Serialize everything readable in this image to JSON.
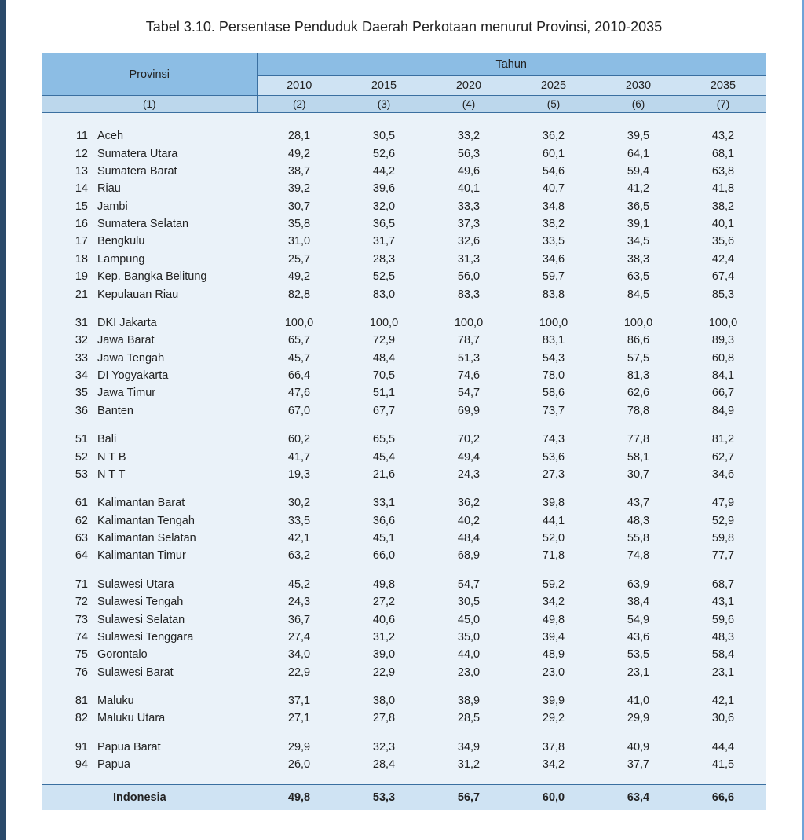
{
  "title": "Tabel 3.10. Persentase Penduduk Daerah Perkotaan menurut Provinsi, 2010-2035",
  "header": {
    "provinsi": "Provinsi",
    "tahun": "Tahun",
    "years": [
      "2010",
      "2015",
      "2020",
      "2025",
      "2030",
      "2035"
    ],
    "col_idx": [
      "(1)",
      "(2)",
      "(3)",
      "(4)",
      "(5)",
      "(6)",
      "(7)"
    ]
  },
  "colors": {
    "header_main": "#8cbde4",
    "header_years": "#cfe3f3",
    "header_idx": "#bcd7ec",
    "body_bg": "#eaf2f9",
    "total_bg": "#cfe3f3",
    "border": "#3a6fa0",
    "page_left_border": "#2a4a6a",
    "page_right_border": "#6fa3d7"
  },
  "groups": [
    {
      "rows": [
        {
          "code": "11",
          "name": "Aceh",
          "v": [
            "28,1",
            "30,5",
            "33,2",
            "36,2",
            "39,5",
            "43,2"
          ]
        },
        {
          "code": "12",
          "name": "Sumatera Utara",
          "v": [
            "49,2",
            "52,6",
            "56,3",
            "60,1",
            "64,1",
            "68,1"
          ]
        },
        {
          "code": "13",
          "name": "Sumatera Barat",
          "v": [
            "38,7",
            "44,2",
            "49,6",
            "54,6",
            "59,4",
            "63,8"
          ]
        },
        {
          "code": "14",
          "name": "Riau",
          "v": [
            "39,2",
            "39,6",
            "40,1",
            "40,7",
            "41,2",
            "41,8"
          ]
        },
        {
          "code": "15",
          "name": "Jambi",
          "v": [
            "30,7",
            "32,0",
            "33,3",
            "34,8",
            "36,5",
            "38,2"
          ]
        },
        {
          "code": "16",
          "name": "Sumatera Selatan",
          "v": [
            "35,8",
            "36,5",
            "37,3",
            "38,2",
            "39,1",
            "40,1"
          ]
        },
        {
          "code": "17",
          "name": "Bengkulu",
          "v": [
            "31,0",
            "31,7",
            "32,6",
            "33,5",
            "34,5",
            "35,6"
          ]
        },
        {
          "code": "18",
          "name": "Lampung",
          "v": [
            "25,7",
            "28,3",
            "31,3",
            "34,6",
            "38,3",
            "42,4"
          ]
        },
        {
          "code": "19",
          "name": "Kep. Bangka Belitung",
          "v": [
            "49,2",
            "52,5",
            "56,0",
            "59,7",
            "63,5",
            "67,4"
          ]
        },
        {
          "code": "21",
          "name": "Kepulauan Riau",
          "v": [
            "82,8",
            "83,0",
            "83,3",
            "83,8",
            "84,5",
            "85,3"
          ]
        }
      ]
    },
    {
      "rows": [
        {
          "code": "31",
          "name": "DKI Jakarta",
          "v": [
            "100,0",
            "100,0",
            "100,0",
            "100,0",
            "100,0",
            "100,0"
          ]
        },
        {
          "code": "32",
          "name": "Jawa Barat",
          "v": [
            "65,7",
            "72,9",
            "78,7",
            "83,1",
            "86,6",
            "89,3"
          ]
        },
        {
          "code": "33",
          "name": "Jawa Tengah",
          "v": [
            "45,7",
            "48,4",
            "51,3",
            "54,3",
            "57,5",
            "60,8"
          ]
        },
        {
          "code": "34",
          "name": "DI Yogyakarta",
          "v": [
            "66,4",
            "70,5",
            "74,6",
            "78,0",
            "81,3",
            "84,1"
          ]
        },
        {
          "code": "35",
          "name": "Jawa Timur",
          "v": [
            "47,6",
            "51,1",
            "54,7",
            "58,6",
            "62,6",
            "66,7"
          ]
        },
        {
          "code": "36",
          "name": "Banten",
          "v": [
            "67,0",
            "67,7",
            "69,9",
            "73,7",
            "78,8",
            "84,9"
          ]
        }
      ]
    },
    {
      "rows": [
        {
          "code": "51",
          "name": "Bali",
          "v": [
            "60,2",
            "65,5",
            "70,2",
            "74,3",
            "77,8",
            "81,2"
          ]
        },
        {
          "code": "52",
          "name": "N T B",
          "v": [
            "41,7",
            "45,4",
            "49,4",
            "53,6",
            "58,1",
            "62,7"
          ]
        },
        {
          "code": "53",
          "name": "N T T",
          "v": [
            "19,3",
            "21,6",
            "24,3",
            "27,3",
            "30,7",
            "34,6"
          ]
        }
      ]
    },
    {
      "rows": [
        {
          "code": "61",
          "name": "Kalimantan Barat",
          "v": [
            "30,2",
            "33,1",
            "36,2",
            "39,8",
            "43,7",
            "47,9"
          ]
        },
        {
          "code": "62",
          "name": "Kalimantan Tengah",
          "v": [
            "33,5",
            "36,6",
            "40,2",
            "44,1",
            "48,3",
            "52,9"
          ]
        },
        {
          "code": "63",
          "name": "Kalimantan Selatan",
          "v": [
            "42,1",
            "45,1",
            "48,4",
            "52,0",
            "55,8",
            "59,8"
          ]
        },
        {
          "code": "64",
          "name": "Kalimantan Timur",
          "v": [
            "63,2",
            "66,0",
            "68,9",
            "71,8",
            "74,8",
            "77,7"
          ]
        }
      ]
    },
    {
      "rows": [
        {
          "code": "71",
          "name": "Sulawesi Utara",
          "v": [
            "45,2",
            "49,8",
            "54,7",
            "59,2",
            "63,9",
            "68,7"
          ]
        },
        {
          "code": "72",
          "name": "Sulawesi Tengah",
          "v": [
            "24,3",
            "27,2",
            "30,5",
            "34,2",
            "38,4",
            "43,1"
          ]
        },
        {
          "code": "73",
          "name": "Sulawesi Selatan",
          "v": [
            "36,7",
            "40,6",
            "45,0",
            "49,8",
            "54,9",
            "59,6"
          ]
        },
        {
          "code": "74",
          "name": "Sulawesi Tenggara",
          "v": [
            "27,4",
            "31,2",
            "35,0",
            "39,4",
            "43,6",
            "48,3"
          ]
        },
        {
          "code": "75",
          "name": "Gorontalo",
          "v": [
            "34,0",
            "39,0",
            "44,0",
            "48,9",
            "53,5",
            "58,4"
          ]
        },
        {
          "code": "76",
          "name": "Sulawesi Barat",
          "v": [
            "22,9",
            "22,9",
            "23,0",
            "23,0",
            "23,1",
            "23,1"
          ]
        }
      ]
    },
    {
      "rows": [
        {
          "code": "81",
          "name": "Maluku",
          "v": [
            "37,1",
            "38,0",
            "38,9",
            "39,9",
            "41,0",
            "42,1"
          ]
        },
        {
          "code": "82",
          "name": "Maluku Utara",
          "v": [
            "27,1",
            "27,8",
            "28,5",
            "29,2",
            "29,9",
            "30,6"
          ]
        }
      ]
    },
    {
      "rows": [
        {
          "code": "91",
          "name": "Papua Barat",
          "v": [
            "29,9",
            "32,3",
            "34,9",
            "37,8",
            "40,9",
            "44,4"
          ]
        },
        {
          "code": "94",
          "name": "Papua",
          "v": [
            "26,0",
            "28,4",
            "31,2",
            "34,2",
            "37,7",
            "41,5"
          ]
        }
      ]
    }
  ],
  "total": {
    "label": "Indonesia",
    "v": [
      "49,8",
      "53,3",
      "56,7",
      "60,0",
      "63,4",
      "66,6"
    ]
  }
}
